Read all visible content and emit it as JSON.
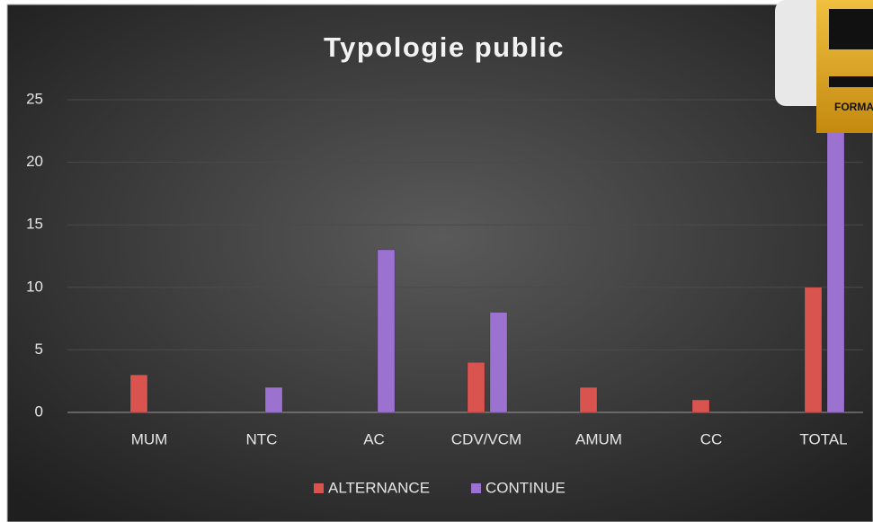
{
  "chart_data": {
    "type": "bar",
    "title": "Typologie public",
    "categories": [
      "MUM",
      "NTC",
      "AC",
      "CDV/VCM",
      "AMUM",
      "CC",
      "TOTAL"
    ],
    "series": [
      {
        "name": "ALTERNANCE",
        "color": "#d9534f",
        "values": [
          3,
          0,
          0,
          4,
          2,
          1,
          10
        ]
      },
      {
        "name": "CONTINUE",
        "color": "#9b72cf",
        "values": [
          0,
          2,
          13,
          8,
          0,
          0,
          23
        ]
      }
    ],
    "ylim": [
      0,
      25
    ],
    "yticks": [
      0,
      5,
      10,
      15,
      20,
      25
    ],
    "grid": true,
    "legend": "bottom"
  },
  "logo": {
    "text": "FORMA"
  }
}
